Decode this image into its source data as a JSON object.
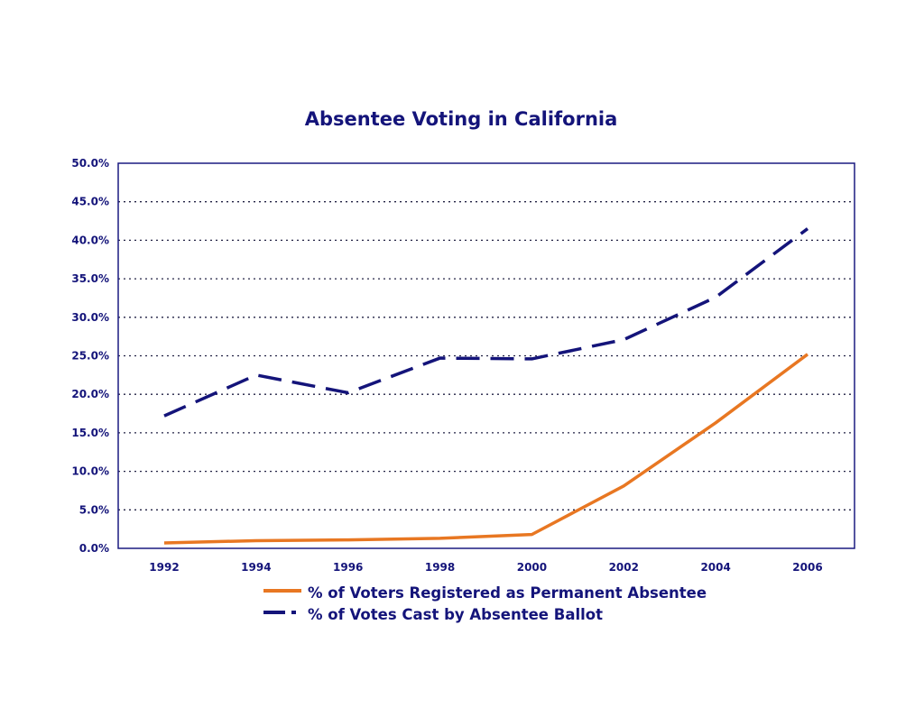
{
  "colors": {
    "text": "#14147a",
    "axis": "#1a1a80",
    "grid": "#222244",
    "permanent_absentee": "#e87722",
    "absentee_ballot": "#14147a"
  },
  "chart_data": {
    "type": "line",
    "title": "Absentee Voting in California",
    "xlabel": "",
    "ylabel": "",
    "categories": [
      "1992",
      "1994",
      "1996",
      "1998",
      "2000",
      "2002",
      "2004",
      "2006"
    ],
    "ylim": [
      0,
      50
    ],
    "yticks": [
      "0.0%",
      "5.0%",
      "10.0%",
      "15.0%",
      "20.0%",
      "25.0%",
      "30.0%",
      "35.0%",
      "40.0%",
      "45.0%",
      "50.0%"
    ],
    "grid": true,
    "legend_position": "bottom-center",
    "series": [
      {
        "name": "% of Voters Registered as Permanent Absentee",
        "style": "solid",
        "values": [
          0.7,
          1.0,
          1.1,
          1.3,
          1.8,
          8.1,
          16.3,
          25.2
        ]
      },
      {
        "name": "% of Votes Cast by Absentee Ballot",
        "style": "dashed",
        "values": [
          17.2,
          22.5,
          20.2,
          24.7,
          24.6,
          27.1,
          32.6,
          41.5
        ]
      }
    ]
  }
}
